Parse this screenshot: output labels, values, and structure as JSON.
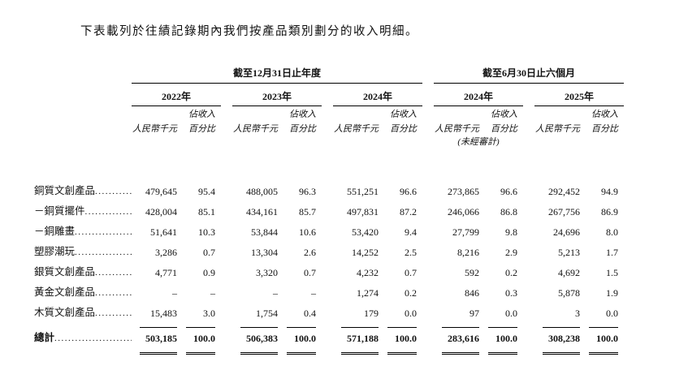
{
  "intro": "下表載列於往績記錄期內我們按產品類別劃分的收入明細。",
  "table": {
    "group_headers": {
      "annual": "截至12月31日止年度",
      "interim": "截至6月30日止六個月"
    },
    "year_headers": [
      "2022年",
      "2023年",
      "2024年",
      "2024年",
      "2025年"
    ],
    "sub": {
      "amount": "人民幣千元",
      "pct_line1": "佔收入",
      "pct_line2": "百分比",
      "unaudited": "(未經審計)"
    },
    "rows": [
      {
        "label": "銅質文創產品",
        "values": [
          "479,645",
          "95.4",
          "488,005",
          "96.3",
          "551,251",
          "96.6",
          "273,865",
          "96.6",
          "292,452",
          "94.9"
        ]
      },
      {
        "label": "－銅質擺件",
        "values": [
          "428,004",
          "85.1",
          "434,161",
          "85.7",
          "497,831",
          "87.2",
          "246,066",
          "86.8",
          "267,756",
          "86.9"
        ]
      },
      {
        "label": "－銅雕畫",
        "values": [
          "51,641",
          "10.3",
          "53,844",
          "10.6",
          "53,420",
          "9.4",
          "27,799",
          "9.8",
          "24,696",
          "8.0"
        ]
      },
      {
        "label": "塑膠潮玩",
        "values": [
          "3,286",
          "0.7",
          "13,304",
          "2.6",
          "14,252",
          "2.5",
          "8,216",
          "2.9",
          "5,213",
          "1.7"
        ]
      },
      {
        "label": "銀質文創產品",
        "values": [
          "4,771",
          "0.9",
          "3,320",
          "0.7",
          "4,232",
          "0.7",
          "592",
          "0.2",
          "4,692",
          "1.5"
        ]
      },
      {
        "label": "黃金文創產品",
        "values": [
          "–",
          "–",
          "–",
          "–",
          "1,274",
          "0.2",
          "846",
          "0.3",
          "5,878",
          "1.9"
        ]
      },
      {
        "label": "木質文創產品",
        "values": [
          "15,483",
          "3.0",
          "1,754",
          "0.4",
          "179",
          "0.0",
          "97",
          "0.0",
          "3",
          "0.0"
        ]
      }
    ],
    "total": {
      "label": "總計",
      "values": [
        "503,185",
        "100.0",
        "506,383",
        "100.0",
        "571,188",
        "100.0",
        "283,616",
        "100.0",
        "308,238",
        "100.0"
      ]
    }
  }
}
